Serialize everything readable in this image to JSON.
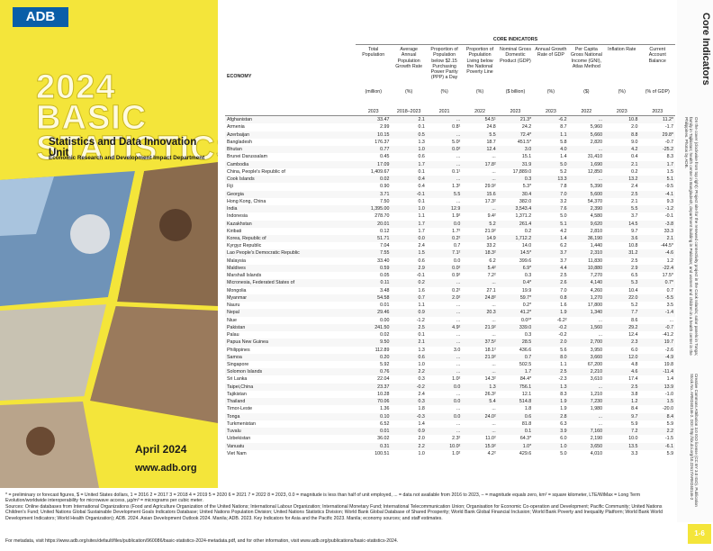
{
  "cover": {
    "logo": "ADB",
    "title": "2024 BASIC STATISTICS",
    "unit": "Statistics and Data Innovation Unit",
    "department": "Economic Research and Development Impact Department",
    "date": "April 2024",
    "website": "www.adb.org"
  },
  "sidebar": {
    "heading": "Core Indicators",
    "cover_note": "On the cover (clockwise from top right): Project site for the renewed connectivity project in the Cook Islands; solar panels in Tonga; family in Tajikistan; health center in Bangladesh; department building in Pakistan; and women and children in a health center in the Philippines. Photos by ADB.",
    "license": "Creative Commons Attribution 3.0 IGO license (CC BY 3.0 IGO). Publication Stock No. ARM240146-2. DOI: http://dx.doi.org/10.22617/ARM240146-2",
    "page": "1-6"
  },
  "table": {
    "group": "CORE INDICATORS",
    "economy_header": "ECONOMY",
    "columns": [
      {
        "label": "Total Population",
        "unit": "(million)",
        "year": "2023"
      },
      {
        "label": "Average Annual Population Growth Rate",
        "unit": "(%)",
        "year": "2018–2023"
      },
      {
        "label": "Proportion of Population below $2.15 Purchasing Power Parity (PPP) a Day",
        "unit": "(%)",
        "year": "2021"
      },
      {
        "label": "Proportion of Population Living below the National Poverty Line",
        "unit": "(%)",
        "year": "2022"
      },
      {
        "label": "Nominal Gross Domestic Product (GDP)",
        "unit": "($ billion)",
        "year": "2023"
      },
      {
        "label": "Annual Growth Rate of GDP",
        "unit": "(%)",
        "year": "2023"
      },
      {
        "label": "Per Capita Gross National Income (GNI), Atlas Method",
        "unit": "($)",
        "year": "2022"
      },
      {
        "label": "Inflation Rate",
        "unit": "(%)",
        "year": "2023"
      },
      {
        "label": "Current Account Balance",
        "unit": "(% of GDP)",
        "year": "2023"
      }
    ],
    "rows": [
      [
        "Afghanistan",
        "33.47",
        "2.1",
        "...",
        "54.5¹",
        "21.3*",
        "-6.2",
        "...",
        "10.8",
        "11.2*"
      ],
      [
        "Armenia",
        "2.99",
        "0.1",
        "0.8¹",
        "24.8",
        "24.2",
        "8.7",
        "5,960",
        "2.0",
        "-1.7"
      ],
      [
        "Azerbaijan",
        "10.15",
        "0.5",
        "...",
        "5.5",
        "72.4*",
        "1.1",
        "5,660",
        "8.8",
        "29.8*"
      ],
      [
        "Bangladesh",
        "176.37",
        "1.3",
        "5.0²",
        "18.7",
        "451.5*",
        "5.8",
        "2,820",
        "9.0",
        "-0.7"
      ],
      [
        "Bhutan",
        "0.77",
        "1.0",
        "0.0²",
        "12.4",
        "3.0",
        "4.0",
        "...",
        "4.2",
        "-25.2"
      ],
      [
        "Brunei Darussalam",
        "0.45",
        "0.6",
        "...",
        "...",
        "15.1",
        "1.4",
        "31,410",
        "0.4",
        "8.3"
      ],
      [
        "Cambodia",
        "17.09",
        "1.7",
        "...",
        "17.8²",
        "31.9",
        "5.0",
        "1,690",
        "2.1",
        "1.7"
      ],
      [
        "China, People's Republic of",
        "1,409.67",
        "0.1",
        "0.1¹",
        "...",
        "17,889.0",
        "5.2",
        "12,850",
        "0.2",
        "1.5"
      ],
      [
        "Cook Islands",
        "0.02",
        "0.4",
        "...",
        "...",
        "0.3",
        "13.3",
        "...",
        "13.2",
        "5.1"
      ],
      [
        "Fiji",
        "0.90",
        "0.4",
        "1.3²",
        "29.9²",
        "5.3*",
        "7.8",
        "5,390",
        "2.4",
        "-9.5"
      ],
      [
        "Georgia",
        "3.71",
        "-0.1",
        "5.5",
        "15.6",
        "30.4",
        "7.0",
        "5,600",
        "2.5",
        "-4.1"
      ],
      [
        "Hong Kong, China",
        "7.50",
        "0.1",
        "...",
        "17.3²",
        "382.0",
        "3.2",
        "54,370",
        "2.1",
        "9.3"
      ],
      [
        "India",
        "1,395.00",
        "1.0",
        "12.9",
        "...",
        "3,543.4",
        "7.6",
        "2,390",
        "5.5",
        "-1.2"
      ],
      [
        "Indonesia",
        "278.70",
        "1.1",
        "1.9²",
        "9.4²",
        "1,371.2",
        "5.0",
        "4,580",
        "3.7",
        "-0.1"
      ],
      [
        "Kazakhstan",
        "20.01",
        "1.7",
        "0.0",
        "5.2",
        "261.4",
        "5.1",
        "9,620",
        "14.5",
        "-3.8"
      ],
      [
        "Kiribati",
        "0.12",
        "1.7",
        "1.7²",
        "21.9²",
        "0.2",
        "4.2",
        "2,810",
        "9.7",
        "33.3"
      ],
      [
        "Korea, Republic of",
        "51.71",
        "0.0",
        "0.2²",
        "14.9",
        "1,712.2",
        "1.4",
        "36,190",
        "3.6",
        "2.1"
      ],
      [
        "Kyrgyz Republic",
        "7.04",
        "2.4",
        "0.7",
        "33.2",
        "14.0",
        "6.2",
        "1,440",
        "10.8",
        "-44.5*"
      ],
      [
        "Lao People's Democratic Republic",
        "7.55",
        "1.5",
        "7.1²",
        "18.3²",
        "14.5*",
        "3.7",
        "2,310",
        "31.2",
        "-4.6"
      ],
      [
        "Malaysia",
        "33.40",
        "0.6",
        "0.0",
        "6.2",
        "399.6",
        "3.7",
        "11,830",
        "2.5",
        "1.2"
      ],
      [
        "Maldives",
        "0.59",
        "2.9",
        "0.0²",
        "5.4²",
        "6.9*",
        "4.4",
        "10,880",
        "2.9",
        "-22.4"
      ],
      [
        "Marshall Islands",
        "0.05",
        "-0.1",
        "0.9²",
        "7.2²",
        "0.3",
        "2.5",
        "7,270",
        "6.5",
        "17.5*"
      ],
      [
        "Micronesia, Federated States of",
        "0.11",
        "0.2",
        "...",
        "...",
        "0.4*",
        "2.6",
        "4,140",
        "5.3",
        "0.7*"
      ],
      [
        "Mongolia",
        "3.48",
        "1.6",
        "0.2²",
        "27.1",
        "19.9",
        "7.0",
        "4,260",
        "10.4",
        "0.7"
      ],
      [
        "Myanmar",
        "54.58",
        "0.7",
        "2.0²",
        "24.8²",
        "59.7*",
        "0.8",
        "1,270",
        "22.0",
        "-5.5"
      ],
      [
        "Nauru",
        "0.01",
        "1.1",
        "...",
        "...",
        "0.2*",
        "1.6",
        "17,800",
        "5.2",
        "3.5"
      ],
      [
        "Nepal",
        "29.46",
        "0.9",
        "...",
        "20.3",
        "41.2*",
        "1.9",
        "1,340",
        "7.7",
        "-1.4"
      ],
      [
        "Niue",
        "0.00",
        "-1.2",
        "...",
        "...",
        "0.0²*",
        "-6.2²",
        "...",
        "8.6",
        "..."
      ],
      [
        "Pakistan",
        "241.50",
        "2.5",
        "4.9²",
        "21.9²",
        "339.0",
        "-0.2",
        "1,560",
        "29.2",
        "-0.7"
      ],
      [
        "Palau",
        "0.02",
        "0.1",
        "...",
        "...",
        "0.3",
        "-0.2",
        "...",
        "12.4",
        "-41.2"
      ],
      [
        "Papua New Guinea",
        "9.50",
        "2.1",
        "...",
        "37.5²",
        "28.5",
        "2.0",
        "2,700",
        "2.3",
        "19.7"
      ],
      [
        "Philippines",
        "112.89",
        "1.3",
        "3.0",
        "18.1²",
        "436.6",
        "5.6",
        "3,950",
        "6.0",
        "-2.6"
      ],
      [
        "Samoa",
        "0.20",
        "0.6",
        "...",
        "21.9²",
        "0.7",
        "8.0",
        "3,660",
        "12.0",
        "-4.9"
      ],
      [
        "Singapore",
        "5.92",
        "1.0",
        "...",
        "...",
        "502.5",
        "1.1",
        "67,200",
        "4.8",
        "19.8"
      ],
      [
        "Solomon Islands",
        "0.76",
        "2.2",
        "...",
        "...",
        "1.7",
        "2.5",
        "2,210",
        "4.6",
        "-11.4"
      ],
      [
        "Sri Lanka",
        "22.04",
        "0.3",
        "1.0²",
        "14.3²",
        "84.4*",
        "-2.3",
        "3,610",
        "17.4",
        "1.4"
      ],
      [
        "Taipei,China",
        "23.37",
        "-0.2",
        "0.0",
        "1.3",
        "756.1",
        "1.3",
        "...",
        "2.5",
        "13.9"
      ],
      [
        "Tajikistan",
        "10.28",
        "2.4",
        "...",
        "26.3²",
        "12.1",
        "8.3",
        "1,210",
        "3.8",
        "-1.0"
      ],
      [
        "Thailand",
        "70.06",
        "0.3",
        "0.0",
        "5.4",
        "514.8",
        "1.9",
        "7,230",
        "1.2",
        "1.5"
      ],
      [
        "Timor-Leste",
        "1.36",
        "1.8",
        "...",
        "...",
        "1.8",
        "1.9",
        "1,980",
        "8.4",
        "-20.0"
      ],
      [
        "Tonga",
        "0.10",
        "-0.3",
        "0.0",
        "24.0²",
        "0.6",
        "2.8",
        "...",
        "9.7",
        "8.4"
      ],
      [
        "Turkmenistan",
        "6.52",
        "1.4",
        "...",
        "...",
        "81.8",
        "6.3",
        "...",
        "5.9",
        "5.9"
      ],
      [
        "Tuvalu",
        "0.01",
        "0.9",
        "...",
        "...",
        "0.1",
        "3.9",
        "7,160",
        "7.2",
        "2.2"
      ],
      [
        "Uzbekistan",
        "36.02",
        "2.0",
        "2.3²",
        "11.0²",
        "64.3*",
        "6.0",
        "2,190",
        "10.0",
        "-1.5"
      ],
      [
        "Vanuatu",
        "0.31",
        "2.2",
        "10.0²",
        "15.9²",
        "1.0*",
        "1.0",
        "3,650",
        "13.5",
        "-6.1"
      ],
      [
        "Viet Nam",
        "100.51",
        "1.0",
        "1.0²",
        "4.2²",
        "429.6",
        "5.0",
        "4,010",
        "3.3",
        "5.9"
      ]
    ]
  },
  "footnotes": {
    "legend": "* = preliminary or forecast figures, $ = United States dollars, 1 = 2016 2 = 2017 3 = 2018 4 = 2019 5 = 2020 6 = 2021 7 = 2022 8 = 2023, 0.0 = magnitude is less than half of unit employed, ... = data not available from 2016 to 2023, – = magnitude equals zero, km² = square kilometer, LTE/WiMax = Long Term Evolution/worldwide interoperability for microwave access, µg/m³ = micrograms per cubic meter.",
    "sources": "Sources: Online databases from International Organizations (Food and Agriculture Organization of the United Nations; International Labour Organization; International Monetary Fund; International Telecommunication Union; Organisation for Economic Co-operation and Development; Pacific Community; United Nations Children's Fund; United Nations Global Sustainable Development Goals Indicators Database; United Nations Population Division; United Nations Statistics Division; World Bank Global Database of Shared Prosperity; World Bank Global Financial Inclusion; World Bank Poverty and Inequality Platform; World Bank World Development Indicators; World Health Organization); ADB. 2024. Asian Development Outlook 2024. Manila; ADB. 2023. Key Indicators for Asia and the Pacific 2023. Manila; economy sources; and staff estimates.",
    "metadata": "For metadata, visit https://www.adb.org/sites/default/files/publication/960086/basic-statistics-2024-metadata.pdf, and for other information, visit www.adb.org/publications/basic-statistics-2024."
  }
}
